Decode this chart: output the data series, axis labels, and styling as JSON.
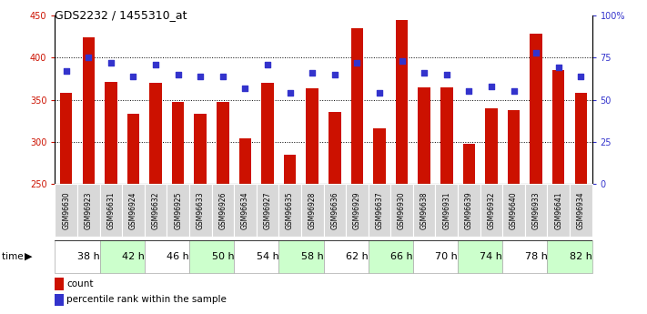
{
  "title": "GDS2232 / 1455310_at",
  "samples": [
    "GSM96630",
    "GSM96923",
    "GSM96631",
    "GSM96924",
    "GSM96632",
    "GSM96925",
    "GSM96633",
    "GSM96926",
    "GSM96634",
    "GSM96927",
    "GSM96635",
    "GSM96928",
    "GSM96636",
    "GSM96929",
    "GSM96637",
    "GSM96930",
    "GSM96638",
    "GSM96931",
    "GSM96639",
    "GSM96932",
    "GSM96640",
    "GSM96933",
    "GSM96641",
    "GSM96934"
  ],
  "counts": [
    358,
    424,
    371,
    333,
    370,
    347,
    333,
    347,
    304,
    370,
    285,
    364,
    335,
    435,
    316,
    445,
    365,
    365,
    297,
    340,
    338,
    429,
    385,
    358
  ],
  "percentiles": [
    67,
    75,
    72,
    64,
    71,
    65,
    64,
    64,
    57,
    71,
    54,
    66,
    65,
    72,
    54,
    73,
    66,
    65,
    55,
    58,
    55,
    78,
    69,
    64
  ],
  "time_groups": [
    {
      "label": "38 h",
      "start": 0,
      "end": 2,
      "color": "#ffffff"
    },
    {
      "label": "42 h",
      "start": 2,
      "end": 4,
      "color": "#ccffcc"
    },
    {
      "label": "46 h",
      "start": 4,
      "end": 6,
      "color": "#ffffff"
    },
    {
      "label": "50 h",
      "start": 6,
      "end": 8,
      "color": "#ccffcc"
    },
    {
      "label": "54 h",
      "start": 8,
      "end": 10,
      "color": "#ffffff"
    },
    {
      "label": "58 h",
      "start": 10,
      "end": 12,
      "color": "#ccffcc"
    },
    {
      "label": "62 h",
      "start": 12,
      "end": 14,
      "color": "#ffffff"
    },
    {
      "label": "66 h",
      "start": 14,
      "end": 16,
      "color": "#ccffcc"
    },
    {
      "label": "70 h",
      "start": 16,
      "end": 18,
      "color": "#ffffff"
    },
    {
      "label": "74 h",
      "start": 18,
      "end": 20,
      "color": "#ccffcc"
    },
    {
      "label": "78 h",
      "start": 20,
      "end": 22,
      "color": "#ffffff"
    },
    {
      "label": "82 h",
      "start": 22,
      "end": 24,
      "color": "#ccffcc"
    }
  ],
  "ymin": 250,
  "ymax": 450,
  "yticks": [
    250,
    300,
    350,
    400,
    450
  ],
  "bar_color": "#cc1100",
  "dot_color": "#3333cc",
  "bar_bottom": 250,
  "background_color": "#ffffff",
  "plot_bg_color": "#ffffff",
  "sample_box_color": "#d8d8d8",
  "legend_count_color": "#cc1100",
  "legend_pct_color": "#3333cc"
}
